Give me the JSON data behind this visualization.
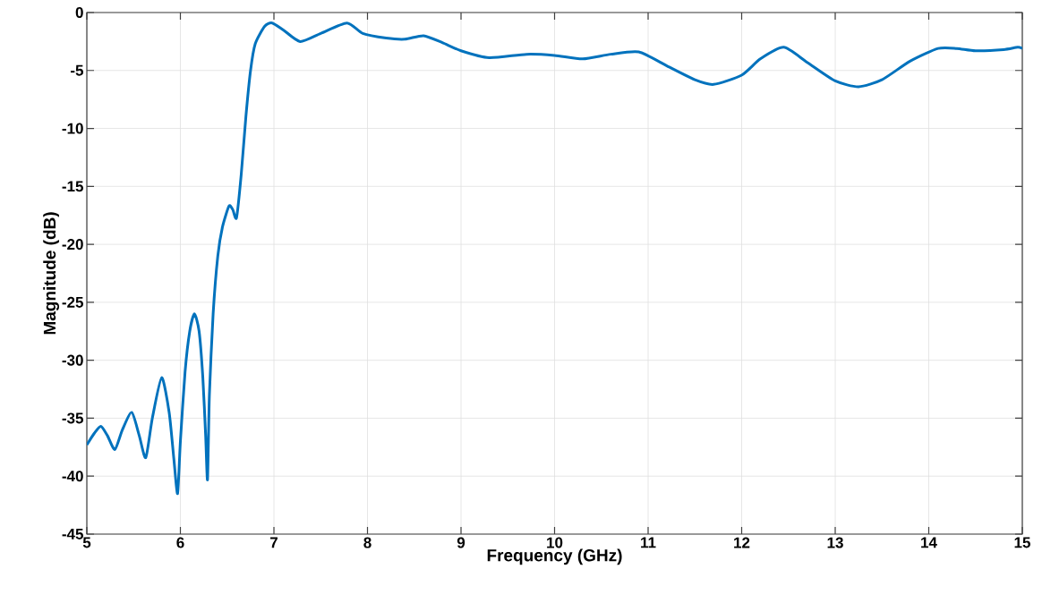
{
  "chart_data": {
    "type": "line",
    "xlabel": "Frequency (GHz)",
    "ylabel": "Magnitude (dB)",
    "xlim": [
      5,
      15
    ],
    "ylim": [
      -45,
      0
    ],
    "xticks": [
      5,
      6,
      7,
      8,
      9,
      10,
      11,
      12,
      13,
      14,
      15
    ],
    "yticks": [
      -45,
      -40,
      -35,
      -30,
      -25,
      -20,
      -15,
      -10,
      -5,
      0
    ],
    "grid": true,
    "series": [
      {
        "color": "#0072bd",
        "x": [
          5.0,
          5.08,
          5.15,
          5.22,
          5.3,
          5.38,
          5.48,
          5.56,
          5.63,
          5.7,
          5.8,
          5.88,
          5.93,
          5.97,
          6.0,
          6.05,
          6.1,
          6.15,
          6.2,
          6.24,
          6.27,
          6.29,
          6.31,
          6.35,
          6.4,
          6.45,
          6.52,
          6.56,
          6.6,
          6.65,
          6.7,
          6.75,
          6.8,
          6.9,
          6.98,
          7.1,
          7.28,
          7.5,
          7.78,
          7.95,
          8.2,
          8.4,
          8.6,
          8.8,
          9.0,
          9.3,
          9.7,
          10.0,
          10.3,
          10.6,
          10.9,
          11.2,
          11.5,
          11.7,
          12.0,
          12.2,
          12.45,
          12.7,
          13.0,
          13.25,
          13.5,
          13.8,
          14.1,
          14.3,
          14.5,
          14.8,
          14.95,
          15.0
        ],
        "values": [
          -37.3,
          -36.3,
          -35.7,
          -36.5,
          -37.7,
          -36.0,
          -34.5,
          -36.5,
          -38.4,
          -35.0,
          -31.5,
          -34.5,
          -38.5,
          -41.5,
          -37.0,
          -31.0,
          -27.5,
          -26.0,
          -27.5,
          -31.5,
          -36.5,
          -40.3,
          -33.0,
          -26.0,
          -21.0,
          -18.5,
          -16.7,
          -17.0,
          -17.7,
          -14.0,
          -9.0,
          -5.0,
          -2.7,
          -1.2,
          -0.9,
          -1.5,
          -2.5,
          -1.8,
          -0.9,
          -1.8,
          -2.2,
          -2.3,
          -2.0,
          -2.6,
          -3.3,
          -3.9,
          -3.6,
          -3.7,
          -4.0,
          -3.6,
          -3.4,
          -4.6,
          -5.8,
          -6.2,
          -5.4,
          -4.0,
          -3.0,
          -4.3,
          -5.9,
          -6.4,
          -5.8,
          -4.2,
          -3.1,
          -3.1,
          -3.3,
          -3.2,
          -3.0,
          -3.1
        ]
      }
    ]
  }
}
